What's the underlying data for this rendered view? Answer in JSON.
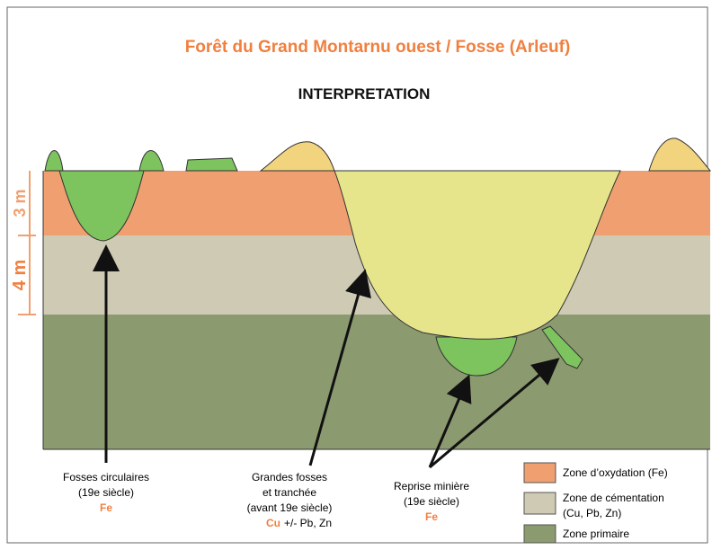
{
  "header": {
    "title": "Forêt du Grand Montarnu  ouest / Fosse (Arleuf)",
    "subtitle": "INTERPRETATION"
  },
  "scale": {
    "upper": "3 m",
    "lower": "4 m"
  },
  "annotations": [
    {
      "lines": [
        "Fosses circulaires",
        "(19e siècle)"
      ],
      "metal": "Fe"
    },
    {
      "lines": [
        "Grandes fosses",
        "et tranchée",
        "(avant 19e siècle)"
      ],
      "metal": "Cu",
      "extra": "+/- Pb, Zn"
    },
    {
      "lines": [
        "Reprise minière",
        "(19e siècle)"
      ],
      "metal": "Fe"
    }
  ],
  "legend": [
    {
      "lines": [
        "Zone d’oxydation (Fe)"
      ]
    },
    {
      "lines": [
        "Zone de cémentation",
        "(Cu, Pb, Zn)"
      ]
    },
    {
      "lines": [
        "Zone primaire"
      ]
    }
  ]
}
